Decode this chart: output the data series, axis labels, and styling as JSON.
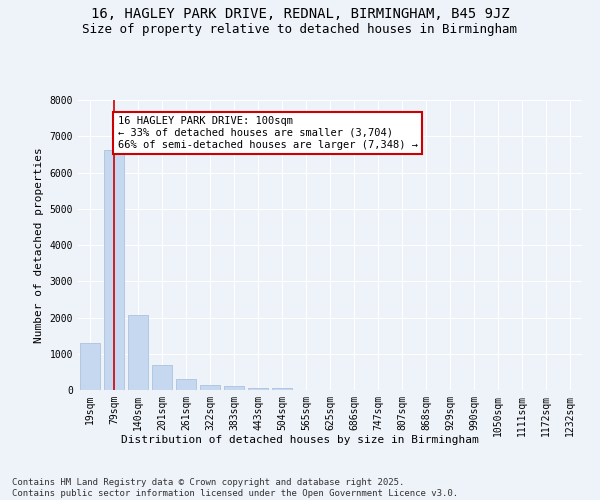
{
  "title": "16, HAGLEY PARK DRIVE, REDNAL, BIRMINGHAM, B45 9JZ",
  "subtitle": "Size of property relative to detached houses in Birmingham",
  "xlabel": "Distribution of detached houses by size in Birmingham",
  "ylabel": "Number of detached properties",
  "categories": [
    "19sqm",
    "79sqm",
    "140sqm",
    "201sqm",
    "261sqm",
    "322sqm",
    "383sqm",
    "443sqm",
    "504sqm",
    "565sqm",
    "625sqm",
    "686sqm",
    "747sqm",
    "807sqm",
    "868sqm",
    "929sqm",
    "990sqm",
    "1050sqm",
    "1111sqm",
    "1172sqm",
    "1232sqm"
  ],
  "values": [
    1300,
    6620,
    2080,
    680,
    300,
    130,
    100,
    65,
    55,
    0,
    0,
    0,
    0,
    0,
    0,
    0,
    0,
    0,
    0,
    0,
    0
  ],
  "bar_color": "#c5d8f0",
  "bar_edgecolor": "#a0bcd8",
  "vline_x": 1,
  "vline_color": "#cc0000",
  "annotation_text": "16 HAGLEY PARK DRIVE: 100sqm\n← 33% of detached houses are smaller (3,704)\n66% of semi-detached houses are larger (7,348) →",
  "annotation_box_edgecolor": "#cc0000",
  "annotation_box_facecolor": "white",
  "ylim": [
    0,
    8000
  ],
  "yticks": [
    0,
    1000,
    2000,
    3000,
    4000,
    5000,
    6000,
    7000,
    8000
  ],
  "background_color": "#eef2f9",
  "grid_color": "white",
  "footer": "Contains HM Land Registry data © Crown copyright and database right 2025.\nContains public sector information licensed under the Open Government Licence v3.0.",
  "title_fontsize": 10,
  "subtitle_fontsize": 9,
  "axis_label_fontsize": 8,
  "tick_fontsize": 7,
  "annotation_fontsize": 7.5,
  "footer_fontsize": 6.5
}
